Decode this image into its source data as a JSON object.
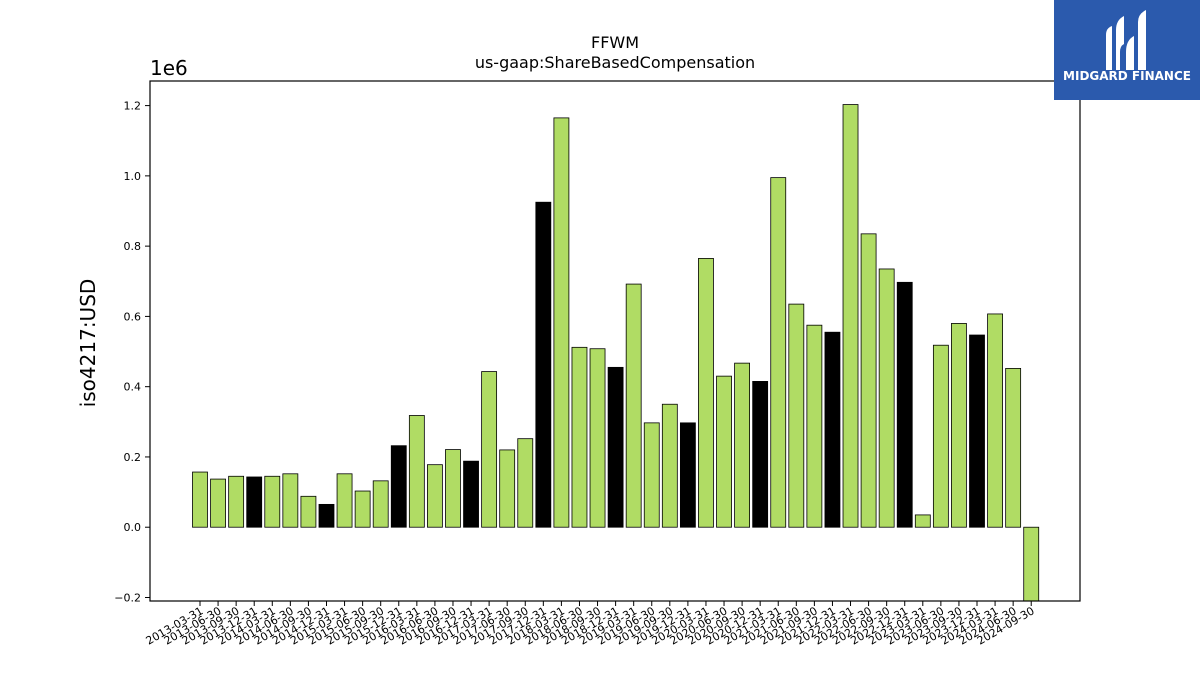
{
  "brand": {
    "name": "MIDGARD FINANCE",
    "logo_icon": "midgard-mark-icon",
    "bg_color": "#2b5aad"
  },
  "chart_data": {
    "type": "bar",
    "title": "FFWM",
    "subtitle": "us-gaap:ShareBasedCompensation",
    "ylabel": "iso4217:USD",
    "y_offset_label": "1e6",
    "ylim": [
      -0.21,
      1.27
    ],
    "yticks": [
      -0.2,
      0.0,
      0.2,
      0.4,
      0.6,
      0.8,
      1.0,
      1.2
    ],
    "ytick_labels": [
      "−0.2",
      "0.0",
      "0.2",
      "0.4",
      "0.6",
      "0.8",
      "1.0",
      "1.2"
    ],
    "grid": false,
    "colors": {
      "quarter": "#b0dc64",
      "q4_highlight": "#000000",
      "edge": "#000000"
    },
    "x_labels": [
      "2013-03-31",
      "2013-06-30",
      "2013-09-30",
      "2013-12-31",
      "2014-03-31",
      "2014-06-30",
      "2014-09-30",
      "2014-12-31",
      "2015-03-31",
      "2015-06-30",
      "2015-09-30",
      "2015-12-31",
      "2016-03-31",
      "2016-06-30",
      "2016-09-30",
      "2016-12-31",
      "2017-03-31",
      "2017-06-30",
      "2017-09-30",
      "2017-12-31",
      "2018-03-31",
      "2018-06-30",
      "2018-09-30",
      "2018-12-31",
      "2019-03-31",
      "2019-06-30",
      "2019-09-30",
      "2019-12-31",
      "2020-03-31",
      "2020-06-30",
      "2020-09-30",
      "2020-12-31",
      "2021-03-31",
      "2021-06-30",
      "2021-09-30",
      "2021-12-31",
      "2022-03-31",
      "2022-06-30",
      "2022-09-30",
      "2022-12-31",
      "2023-03-31",
      "2023-06-30",
      "2023-09-30",
      "2023-12-31",
      "2024-03-31",
      "2024-06-30",
      "2024-09-30"
    ],
    "bars": [
      {
        "value": 0.157,
        "highlight": false
      },
      {
        "value": 0.137,
        "highlight": false
      },
      {
        "value": 0.145,
        "highlight": false
      },
      {
        "value": 0.143,
        "highlight": true
      },
      {
        "value": 0.145,
        "highlight": false
      },
      {
        "value": 0.152,
        "highlight": false
      },
      {
        "value": 0.088,
        "highlight": false
      },
      {
        "value": 0.065,
        "highlight": true
      },
      {
        "value": 0.152,
        "highlight": false
      },
      {
        "value": 0.103,
        "highlight": false
      },
      {
        "value": 0.132,
        "highlight": false
      },
      {
        "value": 0.232,
        "highlight": true
      },
      {
        "value": 0.318,
        "highlight": false
      },
      {
        "value": 0.178,
        "highlight": false
      },
      {
        "value": 0.221,
        "highlight": false
      },
      {
        "value": 0.188,
        "highlight": true
      },
      {
        "value": 0.443,
        "highlight": false
      },
      {
        "value": 0.22,
        "highlight": false
      },
      {
        "value": 0.252,
        "highlight": false
      },
      {
        "value": 0.925,
        "highlight": true
      },
      {
        "value": 1.165,
        "highlight": false
      },
      {
        "value": 0.512,
        "highlight": false
      },
      {
        "value": 0.508,
        "highlight": false
      },
      {
        "value": 0.455,
        "highlight": true
      },
      {
        "value": 0.692,
        "highlight": false
      },
      {
        "value": 0.297,
        "highlight": false
      },
      {
        "value": 0.35,
        "highlight": false
      },
      {
        "value": 0.297,
        "highlight": true
      },
      {
        "value": 0.765,
        "highlight": false
      },
      {
        "value": 0.43,
        "highlight": false
      },
      {
        "value": 0.467,
        "highlight": false
      },
      {
        "value": 0.415,
        "highlight": true
      },
      {
        "value": 0.995,
        "highlight": false
      },
      {
        "value": 0.635,
        "highlight": false
      },
      {
        "value": 0.575,
        "highlight": false
      },
      {
        "value": 0.555,
        "highlight": true
      },
      {
        "value": 1.203,
        "highlight": false
      },
      {
        "value": 0.835,
        "highlight": false
      },
      {
        "value": 0.735,
        "highlight": false
      },
      {
        "value": 0.697,
        "highlight": true
      },
      {
        "value": 0.035,
        "highlight": false
      },
      {
        "value": 0.518,
        "highlight": false
      },
      {
        "value": 0.58,
        "highlight": false
      },
      {
        "value": 0.547,
        "highlight": true
      },
      {
        "value": 0.607,
        "highlight": false
      },
      {
        "value": 0.452,
        "highlight": false
      },
      {
        "value": -0.25,
        "highlight": false
      }
    ]
  }
}
